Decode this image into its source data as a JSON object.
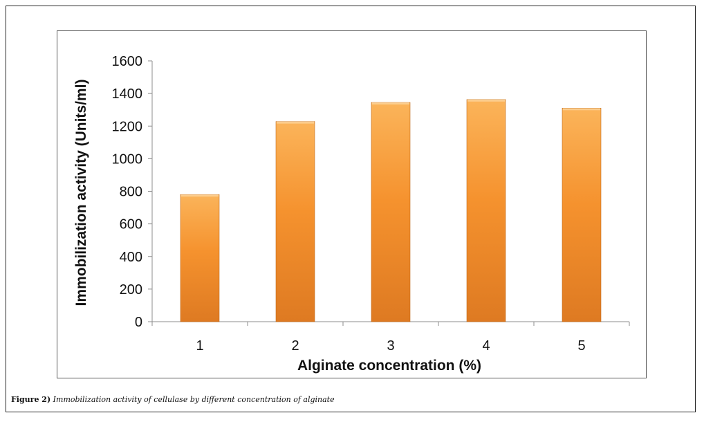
{
  "chart_data": {
    "type": "bar",
    "categories": [
      "1",
      "2",
      "3",
      "4",
      "5"
    ],
    "values": [
      780,
      1228,
      1345,
      1363,
      1310
    ],
    "xlabel": "Alginate concentration (%)",
    "ylabel": "Immobilization activity (Units/ml)",
    "ylim": [
      0,
      1600
    ],
    "yticks": [
      "0",
      "200",
      "400",
      "600",
      "800",
      "1000",
      "1200",
      "1400",
      "1600"
    ],
    "grid": false,
    "bar_color": "#f5922e",
    "bar_top_color": "#fbb45a",
    "bar_bottom_color": "#de7a22"
  },
  "caption": {
    "label": "Figure 2)",
    "text": "Immobilization activity of cellulase by different concentration of alginate"
  }
}
